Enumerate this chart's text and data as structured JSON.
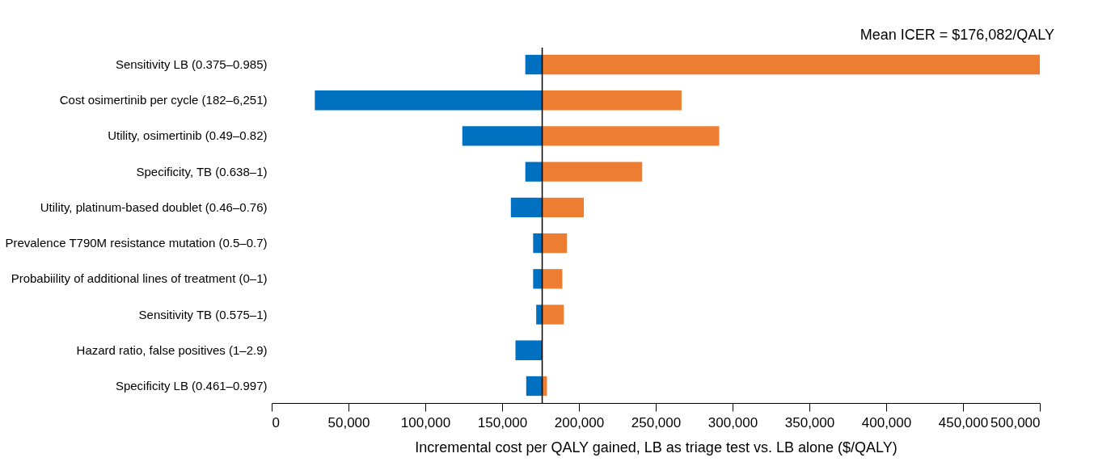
{
  "chart_data": {
    "type": "bar",
    "orientation": "horizontal",
    "xlabel": "Incremental cost per QALY gained, LB as triage test vs. LB alone ($/QALY)",
    "categories": [
      "Sensitivity LB (0.375–0.985)",
      "Cost osimertinib per cycle (182–6,251)",
      "Utility, osimertinib (0.49–0.82)",
      "Specificity, TB (0.638–1)",
      "Utility, platinum-based doublet (0.46–0.76)",
      "Prevalence T790M resistance mutation (0.5–0.7)",
      "Probabiility of additional lines of treatment (0–1)",
      "Sensitivity TB (0.575–1)",
      "Hazard ratio, false positives (1–2.9)",
      "Specificity LB (0.461–0.997)"
    ],
    "series": [
      {
        "color": "#0070c0",
        "base": [
          176082,
          176082,
          176082,
          176082,
          176082,
          176082,
          176082,
          176082,
          176082,
          176082
        ],
        "values": [
          -11000,
          -148000,
          -52000,
          -11000,
          -20400,
          -5900,
          -5900,
          -3900,
          -17400,
          -10400
        ]
      },
      {
        "color": "#ed7d31",
        "base": [
          176082,
          176082,
          176082,
          176082,
          176082,
          176082,
          176082,
          176082,
          null,
          176082
        ],
        "values": [
          323900,
          90700,
          115200,
          65100,
          27100,
          16100,
          13100,
          14100,
          null,
          3100
        ]
      }
    ],
    "xlim": [
      0,
      500000
    ],
    "xticks": [
      {
        "value": 0,
        "label": "0"
      },
      {
        "value": 50000,
        "label": "50,000"
      },
      {
        "value": 100000,
        "label": "100,000"
      },
      {
        "value": 150000,
        "label": "150,000"
      },
      {
        "value": 200000,
        "label": "200,000"
      },
      {
        "value": 250000,
        "label": "250,000"
      },
      {
        "value": 300000,
        "label": "300,000"
      },
      {
        "value": 350000,
        "label": "350,000"
      },
      {
        "value": 400000,
        "label": "400,000"
      },
      {
        "value": 450000,
        "label": "450,000"
      },
      {
        "value": 500000,
        "label": "500,000"
      }
    ],
    "ref_lines": [
      {
        "axis": "x",
        "value": 176082,
        "label": "Mean ICER = $176,082/QALY",
        "color": "#000000"
      }
    ],
    "grid": false
  }
}
